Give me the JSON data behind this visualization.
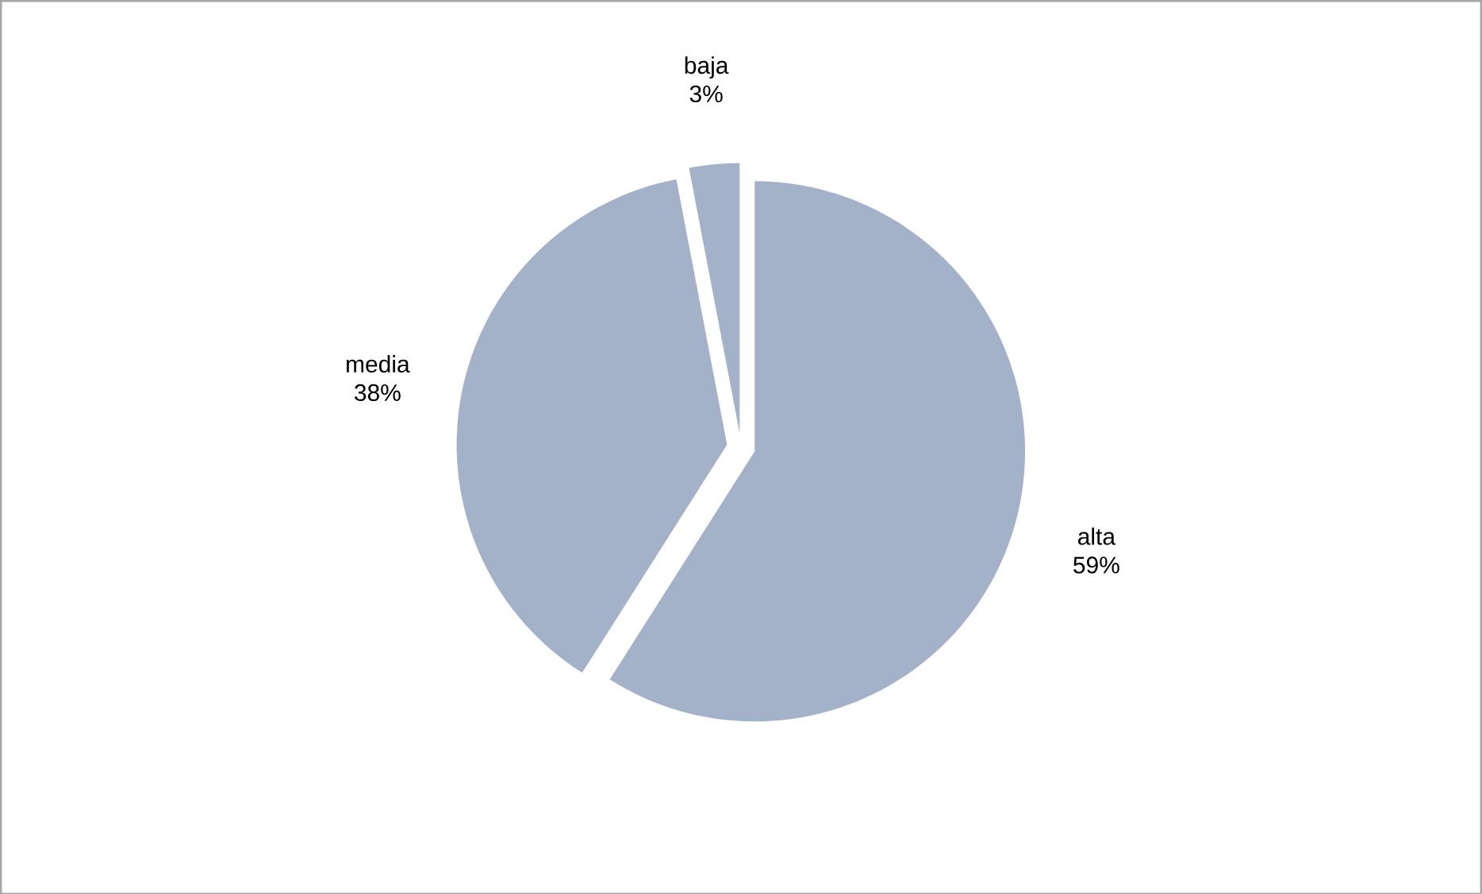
{
  "chart_data": {
    "type": "pie",
    "categories": [
      "alta",
      "media",
      "baja"
    ],
    "values": [
      59,
      38,
      3
    ],
    "value_labels": [
      "59%",
      "38%",
      "3%"
    ],
    "colors": [
      "#a3b1c9",
      "#a3b1c9",
      "#a3b1c9"
    ]
  }
}
